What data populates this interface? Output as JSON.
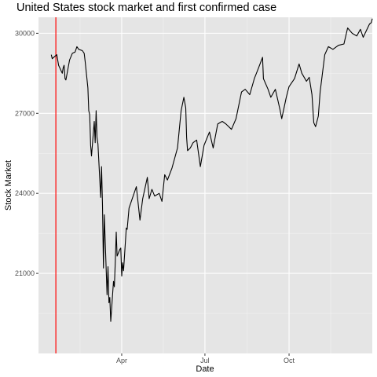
{
  "chart_data": {
    "type": "line",
    "title": "United States stock market and first confirmed case",
    "xlabel": "Date",
    "ylabel": "Stock Market",
    "x_ticks": [
      {
        "date": "2020-04-01",
        "label": "Apr"
      },
      {
        "date": "2020-07-01",
        "label": "Jul"
      },
      {
        "date": "2020-10-01",
        "label": "Oct"
      }
    ],
    "y_ticks": [
      21000,
      24000,
      27000,
      30000
    ],
    "xlim": [
      "2020-01-01",
      "2020-12-31"
    ],
    "ylim": [
      18000,
      30600
    ],
    "grid": true,
    "background": "#e5e5e5",
    "series_color": "#000000",
    "marker": {
      "date": "2020-01-20",
      "color": "#ff0000"
    },
    "series": [
      {
        "x": [
          "2020-01-15",
          "2020-01-16",
          "2020-01-21",
          "2020-01-23",
          "2020-01-27",
          "2020-01-28",
          "2020-01-29",
          "2020-01-30",
          "2020-01-31",
          "2020-02-04",
          "2020-02-07",
          "2020-02-10",
          "2020-02-12",
          "2020-02-14",
          "2020-02-18",
          "2020-02-20",
          "2020-02-21",
          "2020-02-24",
          "2020-02-25",
          "2020-02-26",
          "2020-02-27",
          "2020-02-28",
          "2020-03-02",
          "2020-03-03",
          "2020-03-04",
          "2020-03-05",
          "2020-03-06",
          "2020-03-09",
          "2020-03-10",
          "2020-03-11",
          "2020-03-12",
          "2020-03-13",
          "2020-03-16",
          "2020-03-17",
          "2020-03-18",
          "2020-03-19",
          "2020-03-20",
          "2020-03-23",
          "2020-03-24",
          "2020-03-25",
          "2020-03-26",
          "2020-03-27",
          "2020-03-30",
          "2020-03-31",
          "2020-04-01",
          "2020-04-02",
          "2020-04-03",
          "2020-04-06",
          "2020-04-07",
          "2020-04-09",
          "2020-04-14",
          "2020-04-17",
          "2020-04-21",
          "2020-04-24",
          "2020-04-29",
          "2020-05-01",
          "2020-05-04",
          "2020-05-07",
          "2020-05-12",
          "2020-05-15",
          "2020-05-18",
          "2020-05-21",
          "2020-05-26",
          "2020-06-01",
          "2020-06-05",
          "2020-06-08",
          "2020-06-10",
          "2020-06-11",
          "2020-06-12",
          "2020-06-15",
          "2020-06-18",
          "2020-06-22",
          "2020-06-26",
          "2020-06-30",
          "2020-07-06",
          "2020-07-10",
          "2020-07-15",
          "2020-07-20",
          "2020-07-24",
          "2020-07-30",
          "2020-08-04",
          "2020-08-10",
          "2020-08-14",
          "2020-08-19",
          "2020-08-24",
          "2020-08-28",
          "2020-09-02",
          "2020-09-03",
          "2020-09-08",
          "2020-09-11",
          "2020-09-16",
          "2020-09-21",
          "2020-09-23",
          "2020-09-28",
          "2020-10-01",
          "2020-10-07",
          "2020-10-12",
          "2020-10-15",
          "2020-10-20",
          "2020-10-23",
          "2020-10-26",
          "2020-10-28",
          "2020-10-30",
          "2020-11-02",
          "2020-11-04",
          "2020-11-09",
          "2020-11-13",
          "2020-11-18",
          "2020-11-24",
          "2020-11-30",
          "2020-12-04",
          "2020-12-09",
          "2020-12-14",
          "2020-12-18",
          "2020-12-21",
          "2020-12-28",
          "2020-12-30",
          "2020-12-31"
        ],
        "values": [
          29200,
          29050,
          29200,
          28800,
          28500,
          28700,
          28800,
          28300,
          28250,
          29000,
          29250,
          29300,
          29500,
          29400,
          29350,
          29250,
          28950,
          27950,
          27100,
          26950,
          25800,
          25400,
          26700,
          25900,
          27100,
          26100,
          25850,
          23850,
          25000,
          23550,
          21200,
          23200,
          20200,
          21250,
          19900,
          20100,
          19200,
          20700,
          20500,
          21450,
          22550,
          21650,
          21900,
          21950,
          20900,
          21400,
          21100,
          22700,
          22650,
          23450,
          23950,
          24250,
          23000,
          23800,
          24600,
          23800,
          24150,
          23900,
          24000,
          23700,
          24700,
          24500,
          24950,
          25700,
          27100,
          27600,
          27200,
          26100,
          25600,
          25700,
          25900,
          26000,
          25000,
          25800,
          26300,
          25700,
          26600,
          26700,
          26600,
          26400,
          26800,
          27800,
          27900,
          27700,
          28300,
          28650,
          29100,
          28300,
          27900,
          27600,
          27900,
          27150,
          26800,
          27600,
          28000,
          28300,
          28850,
          28500,
          28200,
          28350,
          27700,
          26650,
          26500,
          26900,
          27800,
          29200,
          29500,
          29400,
          29550,
          29600,
          30200,
          30000,
          29900,
          30150,
          29850,
          30350,
          30400,
          30550
        ]
      }
    ]
  }
}
